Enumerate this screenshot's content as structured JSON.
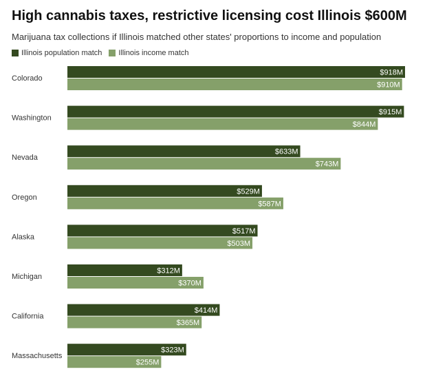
{
  "chart_data": {
    "type": "bar",
    "orientation": "horizontal",
    "title": "High cannabis taxes, restrictive licensing cost Illinois $600M",
    "subtitle": "Marijuana tax collections if Illinois matched other states' proportions to income and population",
    "categories": [
      "Colorado",
      "Washington",
      "Nevada",
      "Oregon",
      "Alaska",
      "Michigan",
      "California",
      "Massachusetts"
    ],
    "series": [
      {
        "name": "Illinois population match",
        "color": "#344a20",
        "values": [
          918,
          915,
          633,
          529,
          517,
          312,
          414,
          323
        ],
        "labels": [
          "$918M",
          "$915M",
          "$633M",
          "$529M",
          "$517M",
          "$312M",
          "$414M",
          "$323M"
        ]
      },
      {
        "name": "Illinois income match",
        "color": "#85a06a",
        "values": [
          910,
          844,
          743,
          587,
          503,
          370,
          365,
          255
        ],
        "labels": [
          "$910M",
          "$844M",
          "$743M",
          "$587M",
          "$503M",
          "$370M",
          "$365M",
          "$255M"
        ]
      }
    ],
    "unit": "$M",
    "xlim": [
      0,
      918
    ],
    "grid": false,
    "legend": "top-left"
  }
}
